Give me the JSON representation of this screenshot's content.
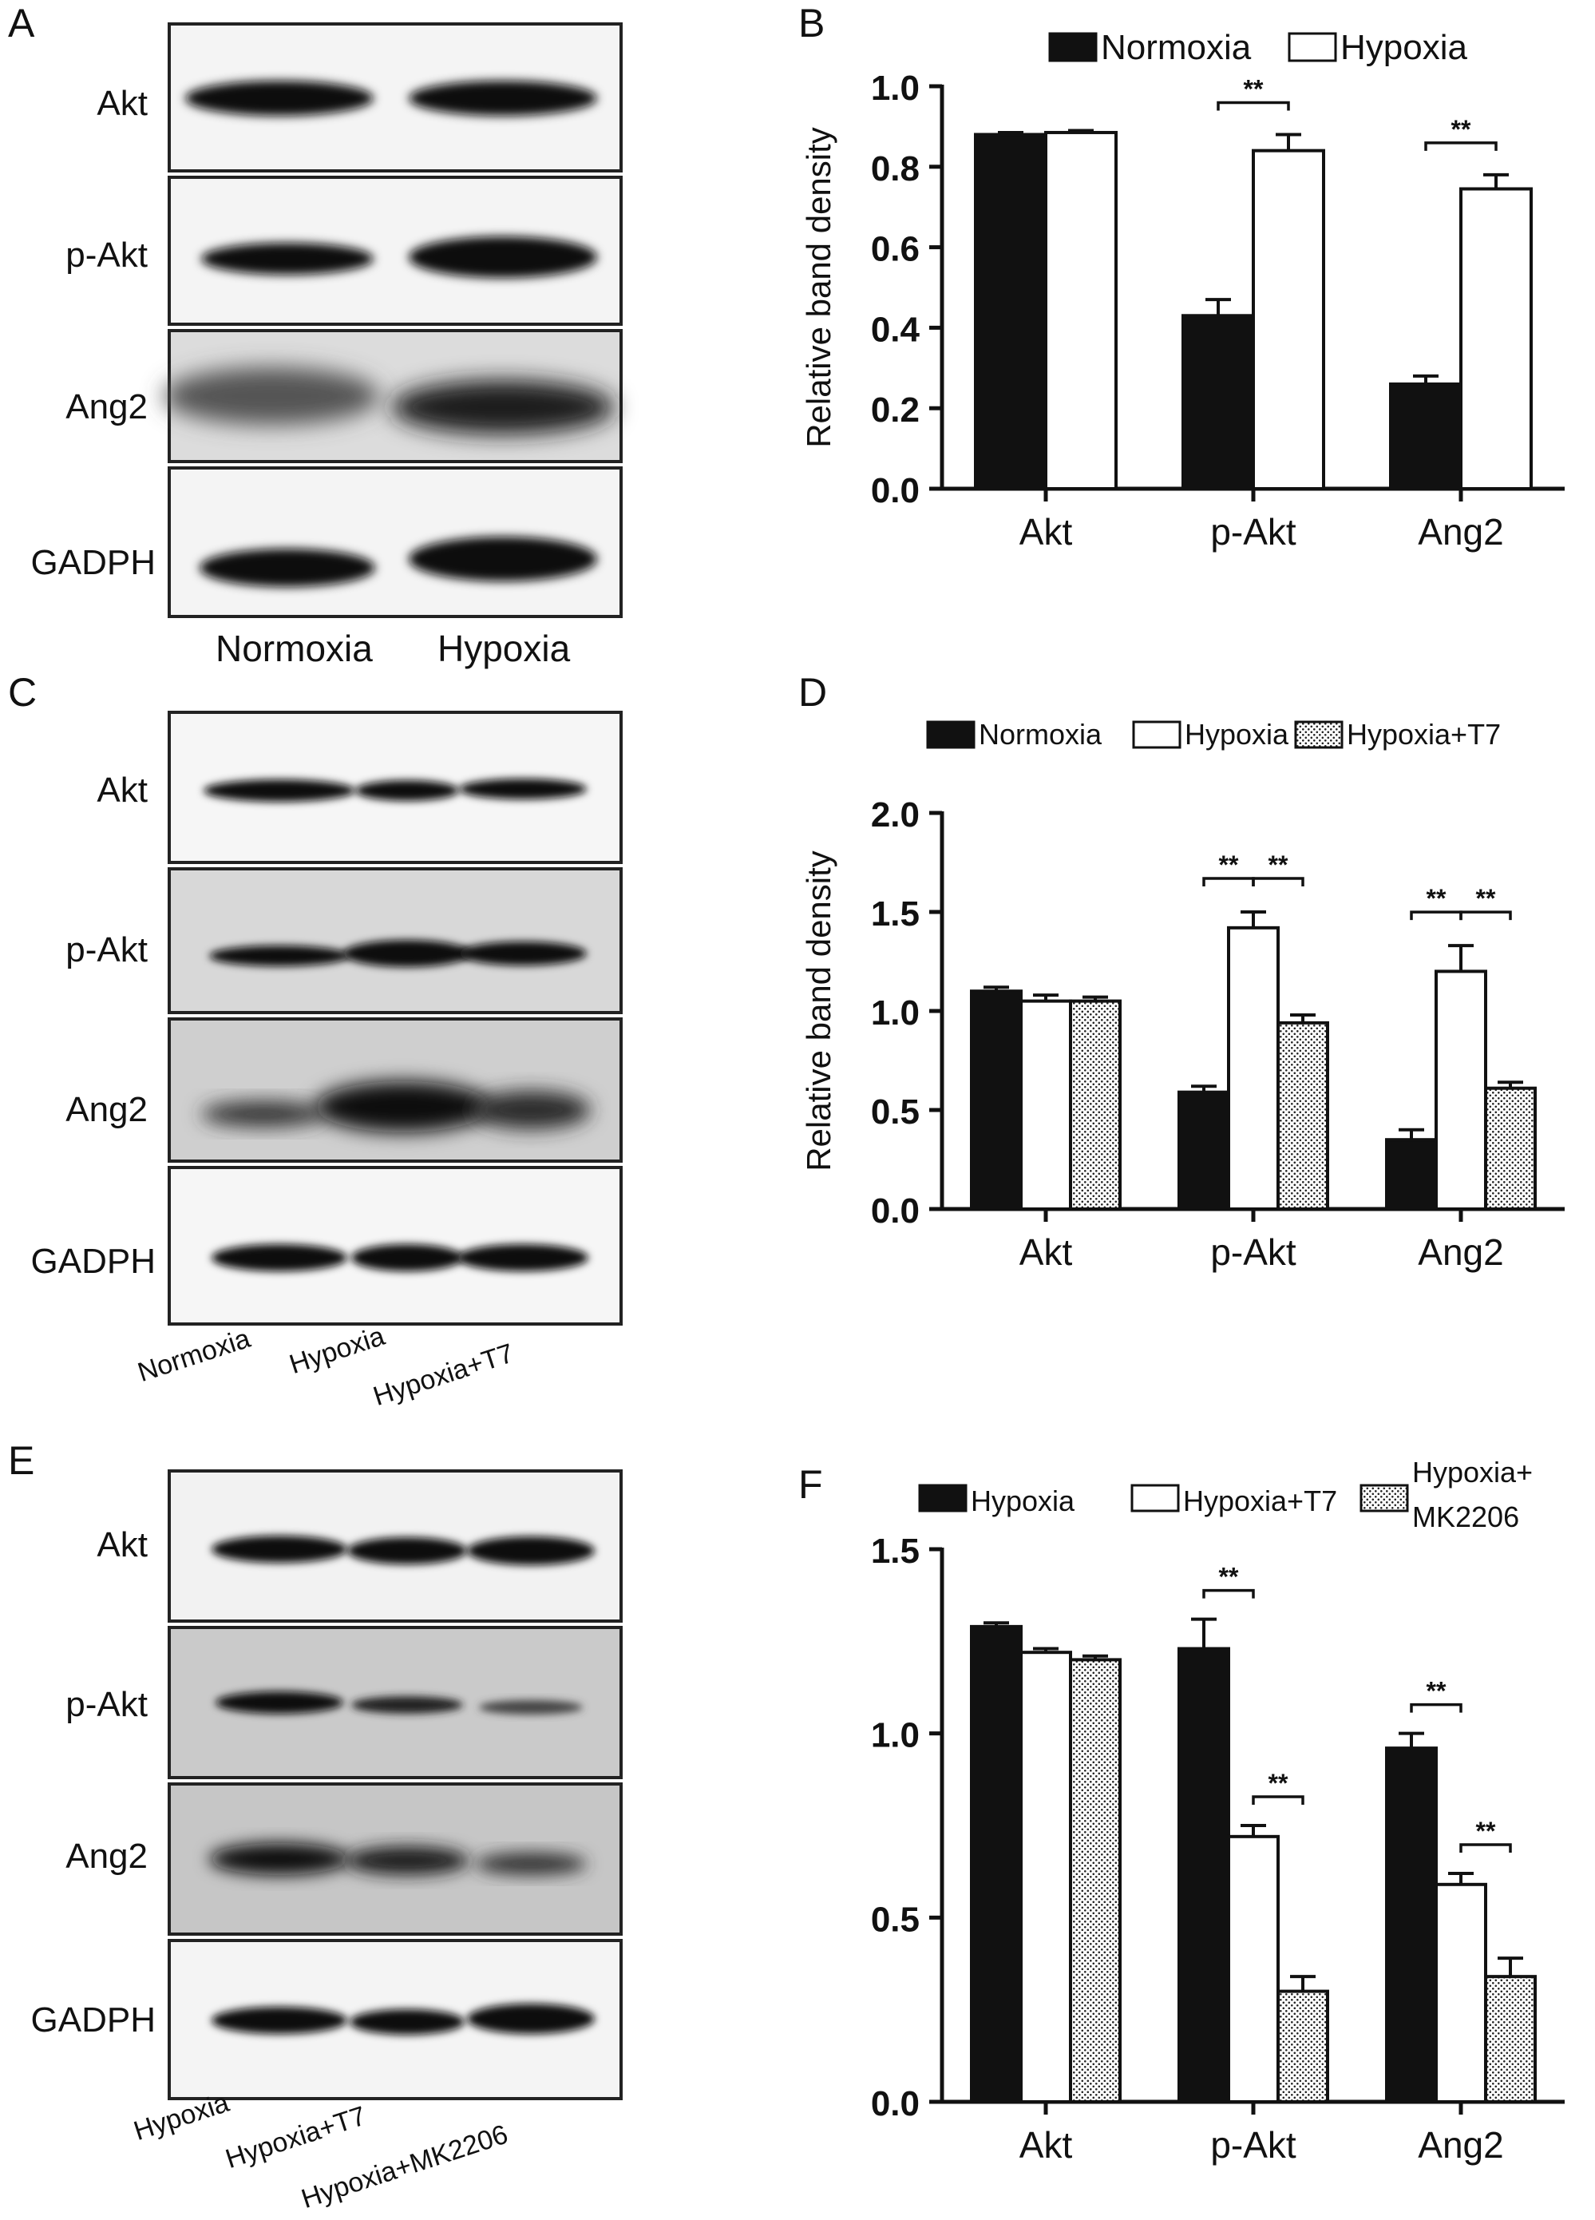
{
  "panels": {
    "A": {
      "letter": "A",
      "bands": [
        "Akt",
        "p-Akt",
        "Ang2",
        "GADPH"
      ],
      "lanes": [
        "Normoxia",
        "Hypoxia"
      ]
    },
    "C": {
      "letter": "C",
      "bands": [
        "Akt",
        "p-Akt",
        "Ang2",
        "GADPH"
      ],
      "lanes": [
        "Normoxia",
        "Hypoxia",
        "Hypoxia+T7"
      ]
    },
    "E": {
      "letter": "E",
      "bands": [
        "Akt",
        "p-Akt",
        "Ang2",
        "GADPH"
      ],
      "lanes": [
        "Hypoxia",
        "Hypoxia+T7",
        "Hypoxia+MK2206"
      ]
    }
  },
  "colors": {
    "black": "#111111",
    "white": "#ffffff",
    "dotted": "#cfcfcf"
  },
  "chart_data": [
    {
      "panel": "B",
      "type": "bar",
      "categories": [
        "Akt",
        "p-Akt",
        "Ang2"
      ],
      "ylabel": "Relative band density",
      "ylim": [
        0,
        1.0
      ],
      "yticks": [
        "0.0",
        "0.2",
        "0.4",
        "0.6",
        "0.8",
        "1.0"
      ],
      "series": [
        {
          "name": "Normoxia",
          "fill": "black",
          "values": [
            0.88,
            0.43,
            0.26
          ],
          "errors": [
            0.005,
            0.04,
            0.02
          ]
        },
        {
          "name": "Hypoxia",
          "fill": "white",
          "values": [
            0.885,
            0.84,
            0.745
          ],
          "errors": [
            0.005,
            0.04,
            0.035
          ]
        }
      ],
      "significance": [
        {
          "category": 1,
          "from": 0,
          "to": 1,
          "label": "**"
        },
        {
          "category": 2,
          "from": 0,
          "to": 1,
          "label": "**"
        }
      ],
      "legend": "top-right"
    },
    {
      "panel": "D",
      "type": "bar",
      "categories": [
        "Akt",
        "p-Akt",
        "Ang2"
      ],
      "ylabel": "Relative band density",
      "ylim": [
        0,
        2.0
      ],
      "yticks": [
        "0.0",
        "0.5",
        "1.0",
        "1.5",
        "2.0"
      ],
      "series": [
        {
          "name": "Normoxia",
          "fill": "black",
          "values": [
            1.1,
            0.59,
            0.35
          ],
          "errors": [
            0.02,
            0.03,
            0.05
          ]
        },
        {
          "name": "Hypoxia",
          "fill": "white",
          "values": [
            1.05,
            1.42,
            1.2
          ],
          "errors": [
            0.03,
            0.08,
            0.13
          ]
        },
        {
          "name": "Hypoxia+T7",
          "fill": "dotted",
          "values": [
            1.05,
            0.94,
            0.61
          ],
          "errors": [
            0.02,
            0.04,
            0.03
          ]
        }
      ],
      "significance": [
        {
          "category": 1,
          "from": 0,
          "to": 1,
          "label": "**"
        },
        {
          "category": 1,
          "from": 1,
          "to": 2,
          "label": "**"
        },
        {
          "category": 2,
          "from": 0,
          "to": 1,
          "label": "**"
        },
        {
          "category": 2,
          "from": 1,
          "to": 2,
          "label": "**"
        }
      ],
      "legend": "top"
    },
    {
      "panel": "F",
      "type": "bar",
      "categories": [
        "Akt",
        "p-Akt",
        "Ang2"
      ],
      "ylabel": "",
      "ylim": [
        0,
        1.5
      ],
      "yticks": [
        "0.0",
        "0.5",
        "1.0",
        "1.5"
      ],
      "series": [
        {
          "name": "Hypoxia",
          "fill": "black",
          "values": [
            1.29,
            1.23,
            0.96
          ],
          "errors": [
            0.01,
            0.08,
            0.04
          ]
        },
        {
          "name": "Hypoxia+T7",
          "fill": "white",
          "values": [
            1.22,
            0.72,
            0.59
          ],
          "errors": [
            0.01,
            0.03,
            0.03
          ]
        },
        {
          "name": "Hypoxia+ MK2206",
          "fill": "dotted",
          "values": [
            1.2,
            0.3,
            0.34
          ],
          "errors": [
            0.01,
            0.04,
            0.05
          ]
        }
      ],
      "significance": [
        {
          "category": 1,
          "from": 0,
          "to": 1,
          "label": "**"
        },
        {
          "category": 1,
          "from": 1,
          "to": 2,
          "label": "**"
        },
        {
          "category": 2,
          "from": 0,
          "to": 1,
          "label": "**"
        },
        {
          "category": 2,
          "from": 1,
          "to": 2,
          "label": "**"
        }
      ],
      "legend": "top"
    }
  ]
}
